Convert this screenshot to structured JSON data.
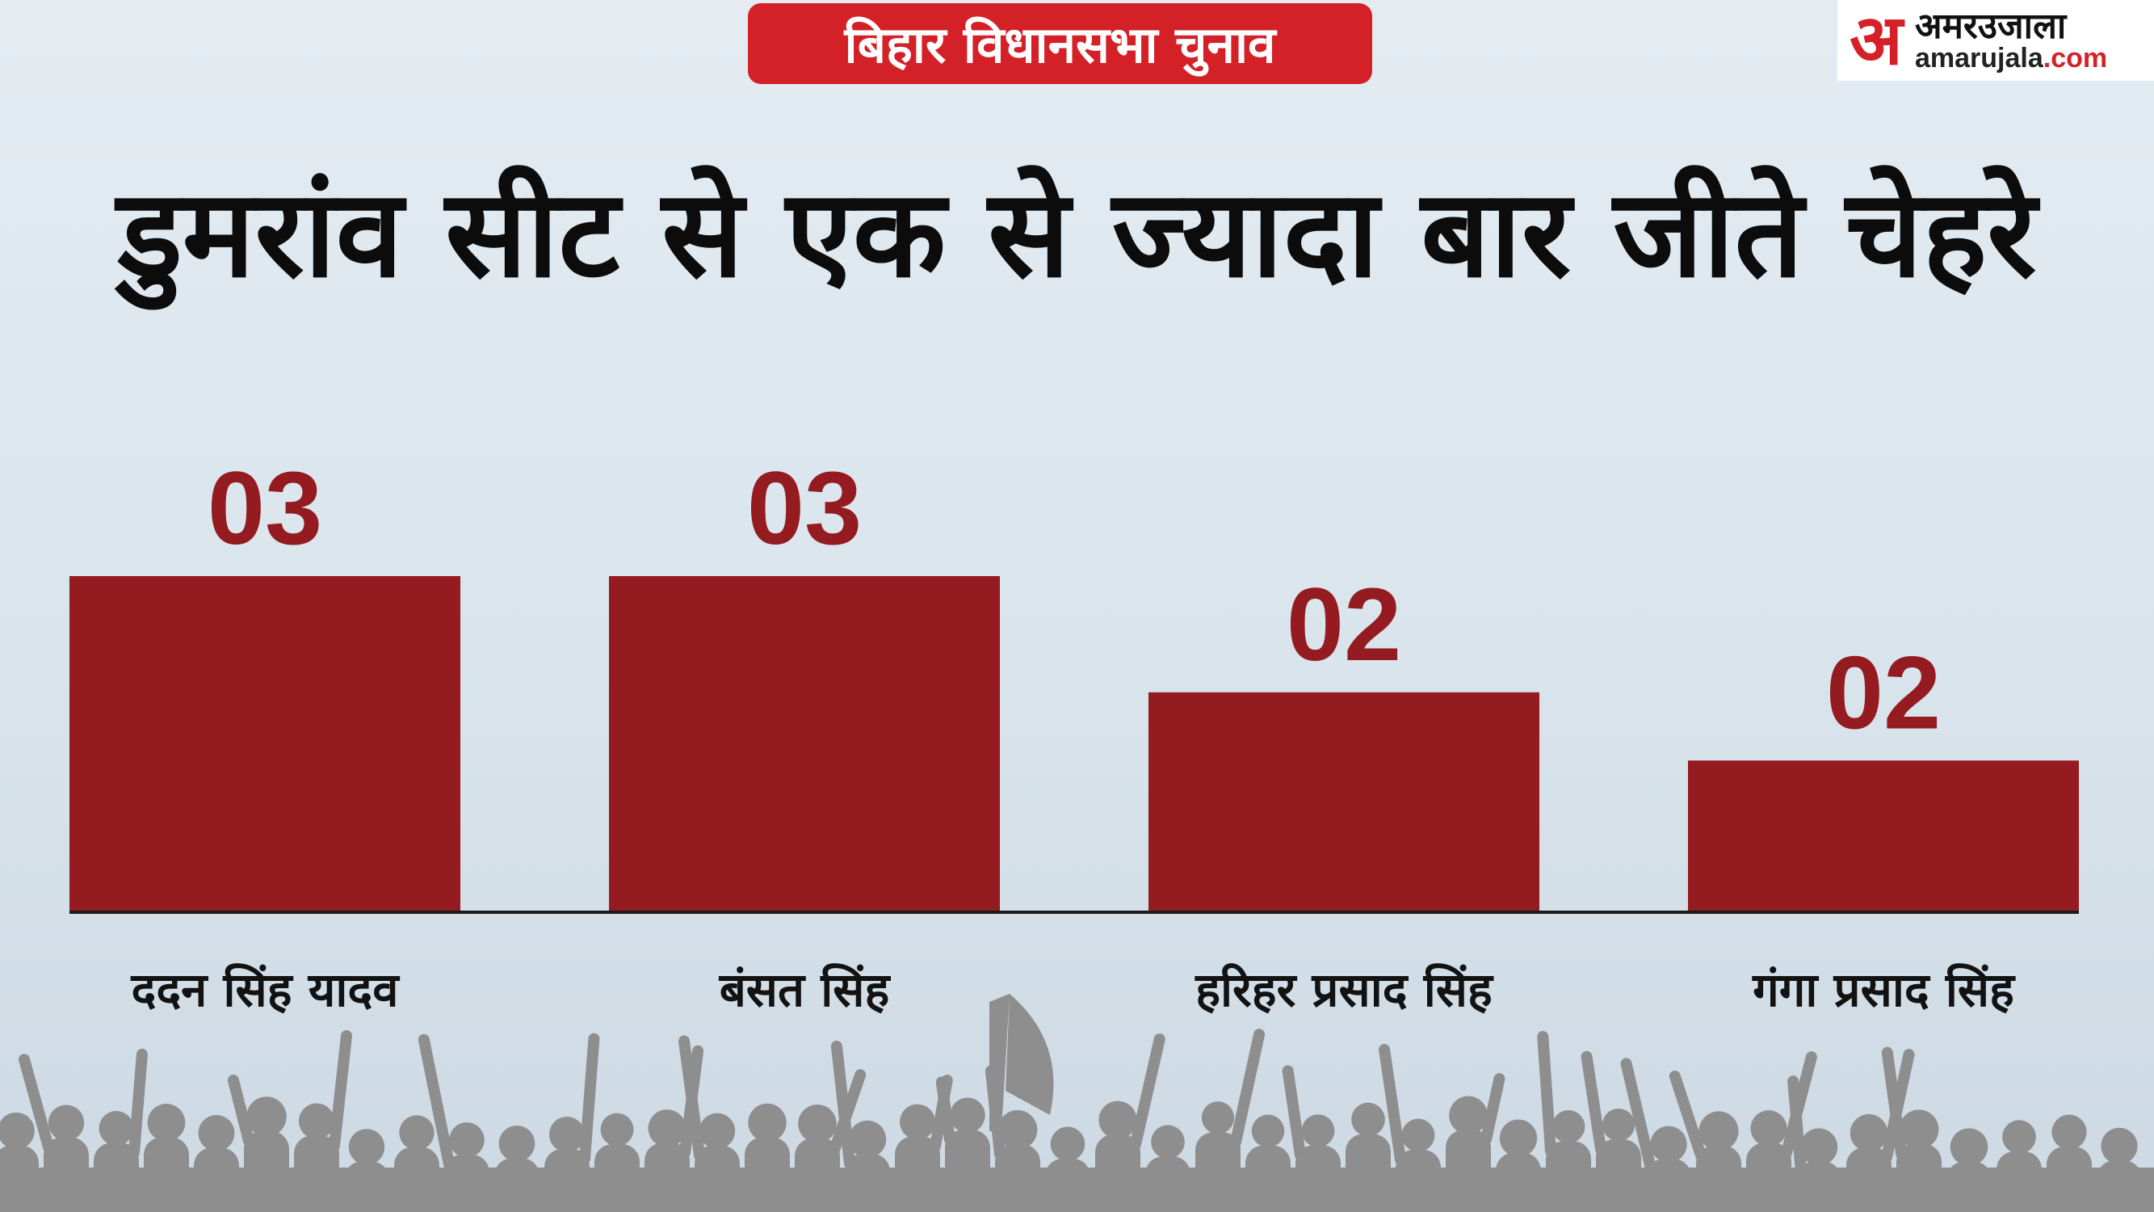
{
  "header": {
    "badge": "बिहार विधानसभा चुनाव",
    "logo_mark": "अ",
    "logo_name": "अमरउजाला",
    "logo_url_prefix": "amarujala",
    "logo_url_suffix": ".com"
  },
  "title": "डुमरांव सीट से एक से ज्यादा बार जीते चेहरे",
  "colors": {
    "bar": "#941b1f",
    "value_label": "#941b1f",
    "badge": "#d42128",
    "baseline": "#1a1a1a",
    "crowd": "#8e8e8e"
  },
  "chart_data": {
    "type": "bar",
    "categories": [
      "ददन सिंह यादव",
      "बंसत सिंह",
      "हरिहर प्रसाद सिंह",
      "गंगा प्रसाद सिंह"
    ],
    "values": [
      3,
      3,
      2,
      2
    ],
    "value_labels": [
      "03",
      "03",
      "02",
      "02"
    ],
    "title": "डुमरांव सीट से एक से ज्यादा बार जीते चेहरे",
    "xlabel": "",
    "ylabel": "",
    "grid": false,
    "legend": "none"
  }
}
